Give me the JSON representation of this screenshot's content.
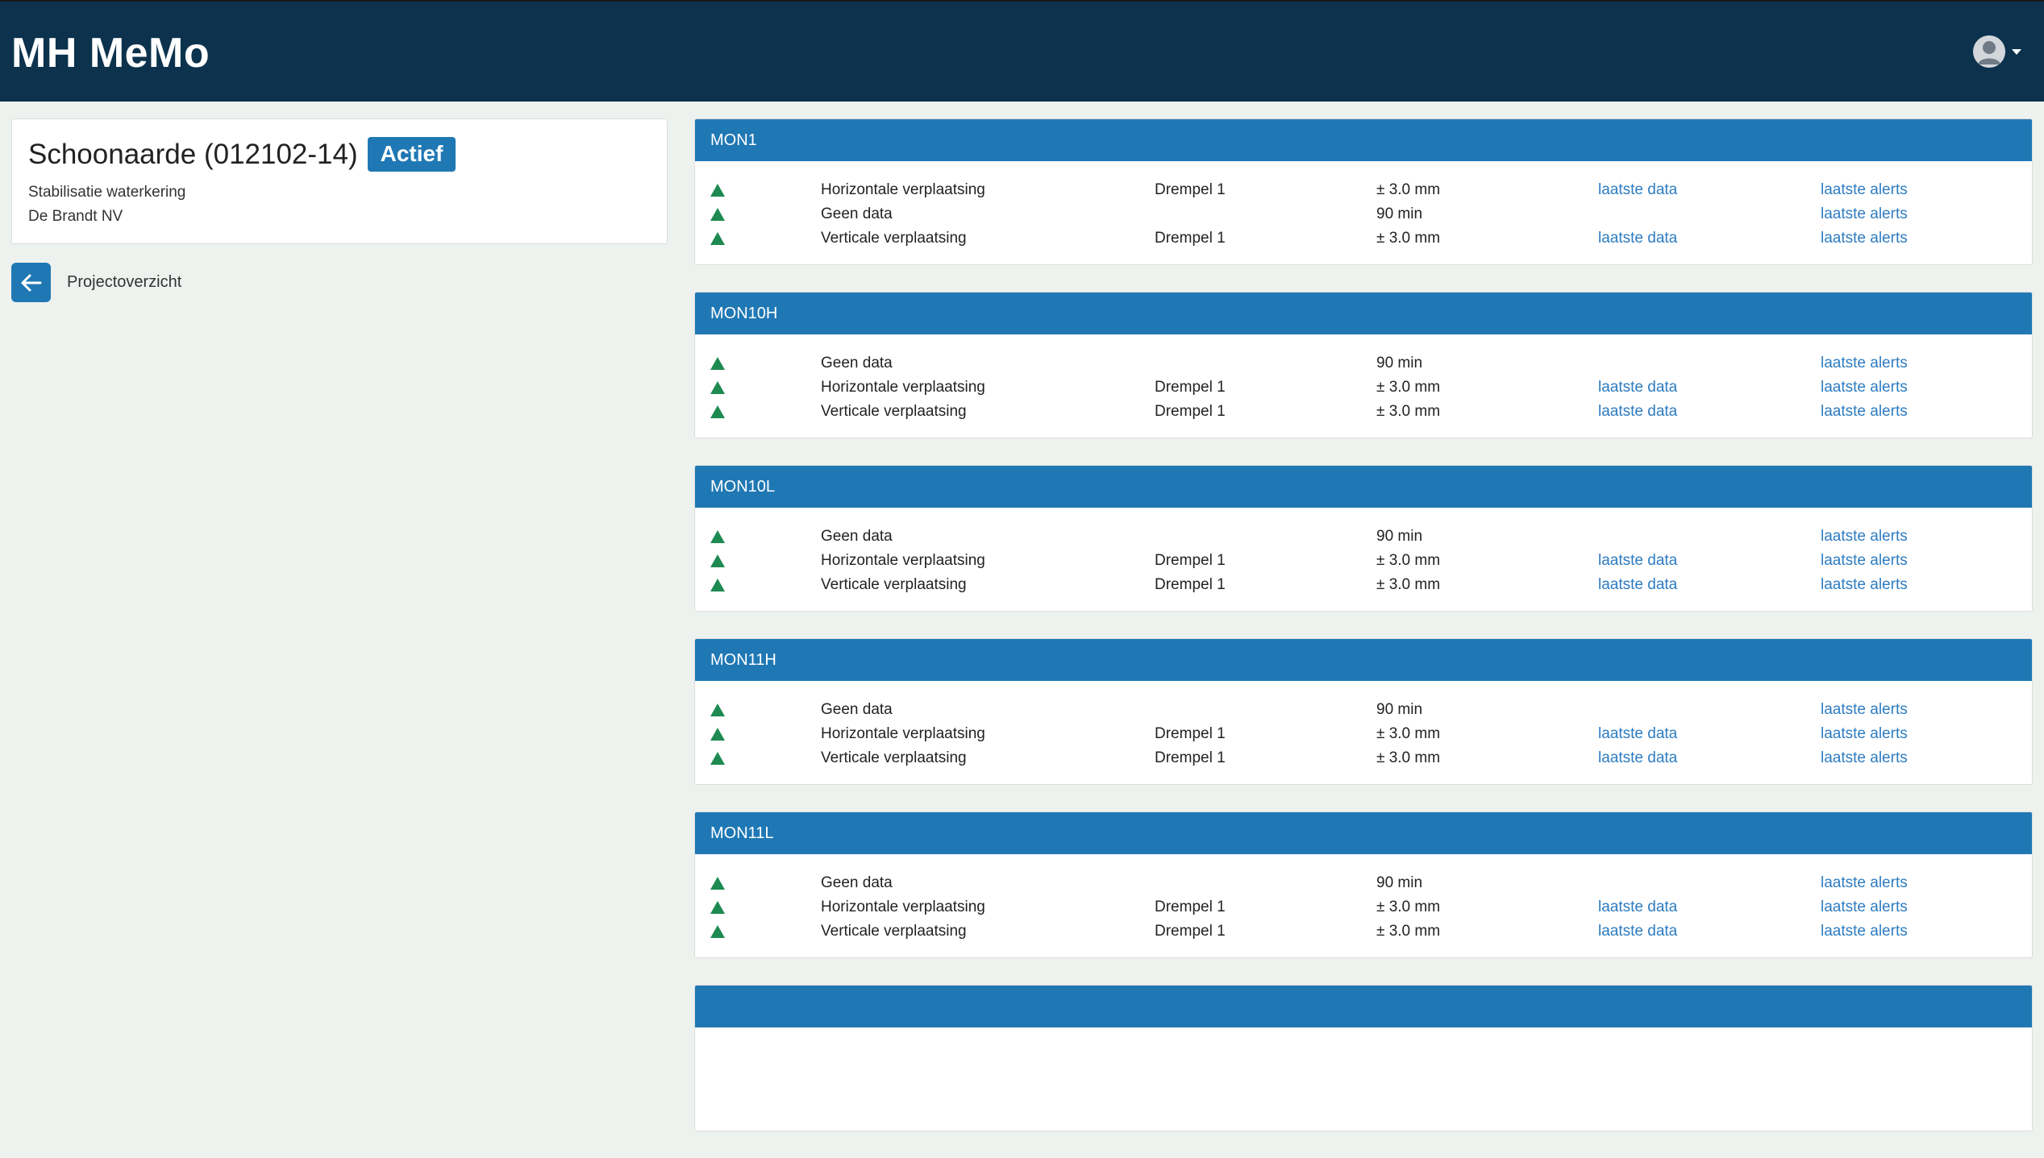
{
  "app": {
    "title": "MH MeMo"
  },
  "user": {
    "avatar": "user-avatar-icon",
    "menu_icon": "caret-down-icon"
  },
  "project": {
    "name": "Schoonaarde (012102-14)",
    "status": "Actief",
    "description": "Stabilisatie waterkering",
    "client": "De Brandt NV"
  },
  "back": {
    "icon": "arrow-left-icon",
    "label": "Projectoverzicht"
  },
  "colors": {
    "navbar": "#0c324d",
    "accent": "#1f78b4",
    "ok": "#1e8a52",
    "link": "#2d7cc1"
  },
  "monitors": [
    {
      "name": "MON1",
      "rows": [
        {
          "icon": "status-ok-triangle-icon",
          "type": "Horizontale verplaatsing",
          "threshold": "Drempel 1",
          "value": "± 3.0 mm",
          "data_link": "laatste data",
          "alerts_link": "laatste alerts"
        },
        {
          "icon": "status-ok-triangle-icon",
          "type": "Geen data",
          "threshold": "",
          "value": "90 min",
          "data_link": "",
          "alerts_link": "laatste alerts"
        },
        {
          "icon": "status-ok-triangle-icon",
          "type": "Verticale verplaatsing",
          "threshold": "Drempel 1",
          "value": "± 3.0 mm",
          "data_link": "laatste data",
          "alerts_link": "laatste alerts"
        }
      ]
    },
    {
      "name": "MON10H",
      "rows": [
        {
          "icon": "status-ok-triangle-icon",
          "type": "Geen data",
          "threshold": "",
          "value": "90 min",
          "data_link": "",
          "alerts_link": "laatste alerts"
        },
        {
          "icon": "status-ok-triangle-icon",
          "type": "Horizontale verplaatsing",
          "threshold": "Drempel 1",
          "value": "± 3.0 mm",
          "data_link": "laatste data",
          "alerts_link": "laatste alerts"
        },
        {
          "icon": "status-ok-triangle-icon",
          "type": "Verticale verplaatsing",
          "threshold": "Drempel 1",
          "value": "± 3.0 mm",
          "data_link": "laatste data",
          "alerts_link": "laatste alerts"
        }
      ]
    },
    {
      "name": "MON10L",
      "rows": [
        {
          "icon": "status-ok-triangle-icon",
          "type": "Geen data",
          "threshold": "",
          "value": "90 min",
          "data_link": "",
          "alerts_link": "laatste alerts"
        },
        {
          "icon": "status-ok-triangle-icon",
          "type": "Horizontale verplaatsing",
          "threshold": "Drempel 1",
          "value": "± 3.0 mm",
          "data_link": "laatste data",
          "alerts_link": "laatste alerts"
        },
        {
          "icon": "status-ok-triangle-icon",
          "type": "Verticale verplaatsing",
          "threshold": "Drempel 1",
          "value": "± 3.0 mm",
          "data_link": "laatste data",
          "alerts_link": "laatste alerts"
        }
      ]
    },
    {
      "name": "MON11H",
      "rows": [
        {
          "icon": "status-ok-triangle-icon",
          "type": "Geen data",
          "threshold": "",
          "value": "90 min",
          "data_link": "",
          "alerts_link": "laatste alerts"
        },
        {
          "icon": "status-ok-triangle-icon",
          "type": "Horizontale verplaatsing",
          "threshold": "Drempel 1",
          "value": "± 3.0 mm",
          "data_link": "laatste data",
          "alerts_link": "laatste alerts"
        },
        {
          "icon": "status-ok-triangle-icon",
          "type": "Verticale verplaatsing",
          "threshold": "Drempel 1",
          "value": "± 3.0 mm",
          "data_link": "laatste data",
          "alerts_link": "laatste alerts"
        }
      ]
    },
    {
      "name": "MON11L",
      "rows": [
        {
          "icon": "status-ok-triangle-icon",
          "type": "Geen data",
          "threshold": "",
          "value": "90 min",
          "data_link": "",
          "alerts_link": "laatste alerts"
        },
        {
          "icon": "status-ok-triangle-icon",
          "type": "Horizontale verplaatsing",
          "threshold": "Drempel 1",
          "value": "± 3.0 mm",
          "data_link": "laatste data",
          "alerts_link": "laatste alerts"
        },
        {
          "icon": "status-ok-triangle-icon",
          "type": "Verticale verplaatsing",
          "threshold": "Drempel 1",
          "value": "± 3.0 mm",
          "data_link": "laatste data",
          "alerts_link": "laatste alerts"
        }
      ]
    },
    {
      "name": "",
      "rows": []
    }
  ]
}
